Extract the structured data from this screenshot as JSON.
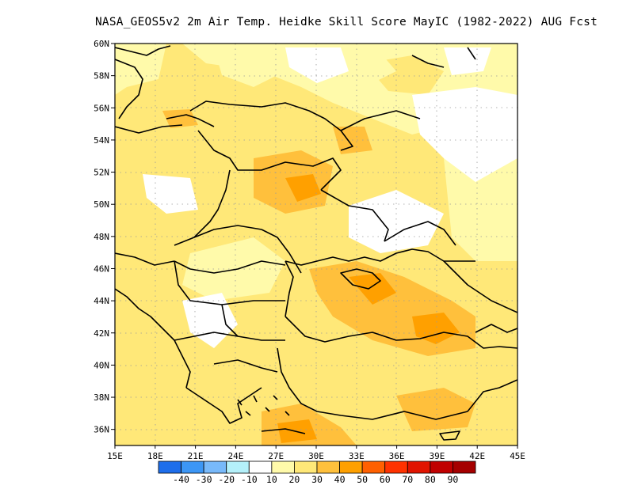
{
  "title": "NASA_GEOS5v2  2m Air Temp. Heidke Skill Score MayIC (1982-2022) AUG Fcst",
  "map": {
    "lon_range": [
      15,
      45
    ],
    "lat_range": [
      35,
      60
    ],
    "lat_labels": [
      "60N",
      "58N",
      "56N",
      "54N",
      "52N",
      "50N",
      "48N",
      "46N",
      "44N",
      "42N",
      "40N",
      "38N",
      "36N"
    ],
    "lat_values": [
      60,
      58,
      56,
      54,
      52,
      50,
      48,
      46,
      44,
      42,
      40,
      38,
      36
    ],
    "lon_labels": [
      "15E",
      "18E",
      "21E",
      "24E",
      "27E",
      "30E",
      "33E",
      "36E",
      "39E",
      "42E",
      "45E"
    ],
    "lon_values": [
      15,
      18,
      21,
      24,
      27,
      30,
      33,
      36,
      39,
      42,
      45
    ],
    "grid": true
  },
  "colorbar": {
    "labels": [
      "-40",
      "-30",
      "-20",
      "-10",
      "10",
      "20",
      "30",
      "40",
      "50",
      "60",
      "70",
      "80",
      "90"
    ],
    "colors": [
      "#1e6eeb",
      "#3c96f5",
      "#78b9fa",
      "#b4f0fa",
      "#ffffff",
      "#fffaaa",
      "#ffe878",
      "#ffc03c",
      "#ffa000",
      "#ff6000",
      "#ff3200",
      "#e11400",
      "#c00000",
      "#a50000"
    ]
  }
}
